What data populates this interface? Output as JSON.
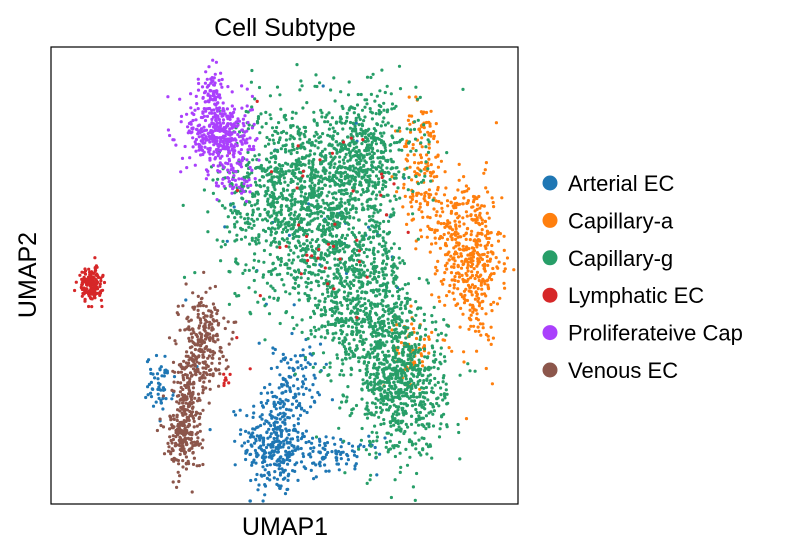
{
  "chart_data": {
    "type": "scatter",
    "title": "Cell Subtype",
    "xlabel": "UMAP1",
    "ylabel": "UMAP2",
    "xlim": [
      0,
      100
    ],
    "ylim": [
      0,
      100
    ],
    "grid": false,
    "legend": "right",
    "series": [
      {
        "name": "Arterial EC",
        "color": "#1f77b4",
        "clusters": [
          {
            "cx": 48,
            "cy": 13,
            "sx": 3.5,
            "sy": 6,
            "n": 330
          },
          {
            "cx": 52,
            "cy": 27,
            "sx": 3,
            "sy": 4,
            "n": 90
          },
          {
            "cx": 61,
            "cy": 10,
            "sx": 5,
            "sy": 2,
            "n": 90
          },
          {
            "cx": 23,
            "cy": 26,
            "sx": 1.5,
            "sy": 3,
            "n": 55
          },
          {
            "cx": 56,
            "cy": 60,
            "sx": 12,
            "sy": 16,
            "n": 40
          }
        ]
      },
      {
        "name": "Capillary-a",
        "color": "#ff7f0e",
        "clusters": [
          {
            "cx": 91,
            "cy": 53,
            "sx": 3,
            "sy": 9,
            "n": 380
          },
          {
            "cx": 80,
            "cy": 73,
            "sx": 2.5,
            "sy": 8,
            "n": 150
          },
          {
            "cx": 86,
            "cy": 60,
            "sx": 2,
            "sy": 6,
            "n": 90
          },
          {
            "cx": 78,
            "cy": 34,
            "sx": 2,
            "sy": 4,
            "n": 60
          }
        ]
      },
      {
        "name": "Capillary-g",
        "color": "#279e68",
        "clusters": [
          {
            "cx": 52,
            "cy": 68,
            "sx": 8,
            "sy": 10,
            "n": 1000
          },
          {
            "cx": 67,
            "cy": 76,
            "sx": 6,
            "sy": 7,
            "n": 550
          },
          {
            "cx": 63,
            "cy": 52,
            "sx": 7,
            "sy": 7,
            "n": 500
          },
          {
            "cx": 75,
            "cy": 26,
            "sx": 5,
            "sy": 8,
            "n": 750
          },
          {
            "cx": 68,
            "cy": 40,
            "sx": 6,
            "sy": 6,
            "n": 350
          }
        ]
      },
      {
        "name": "Lymphatic EC",
        "color": "#d62728",
        "clusters": [
          {
            "cx": 8,
            "cy": 48,
            "sx": 1.2,
            "sy": 1.8,
            "n": 170
          },
          {
            "cx": 60,
            "cy": 62,
            "sx": 10,
            "sy": 14,
            "n": 45
          },
          {
            "cx": 37,
            "cy": 27,
            "sx": 0.7,
            "sy": 0.8,
            "n": 8
          }
        ]
      },
      {
        "name": "Proliferateive Cap",
        "color": "#aa40fc",
        "clusters": [
          {
            "cx": 36,
            "cy": 81,
            "sx": 3.5,
            "sy": 4,
            "n": 380
          },
          {
            "cx": 34.5,
            "cy": 91,
            "sx": 1.3,
            "sy": 3,
            "n": 80
          },
          {
            "cx": 39,
            "cy": 71,
            "sx": 2,
            "sy": 2.5,
            "n": 50
          }
        ]
      },
      {
        "name": "Venous EC",
        "color": "#8c564b",
        "clusters": [
          {
            "cx": 32,
            "cy": 36,
            "sx": 2.5,
            "sy": 5,
            "n": 250
          },
          {
            "cx": 28,
            "cy": 14,
            "sx": 2,
            "sy": 3.5,
            "n": 200
          },
          {
            "cx": 29,
            "cy": 24,
            "sx": 1.8,
            "sy": 4,
            "n": 120
          }
        ]
      }
    ]
  }
}
